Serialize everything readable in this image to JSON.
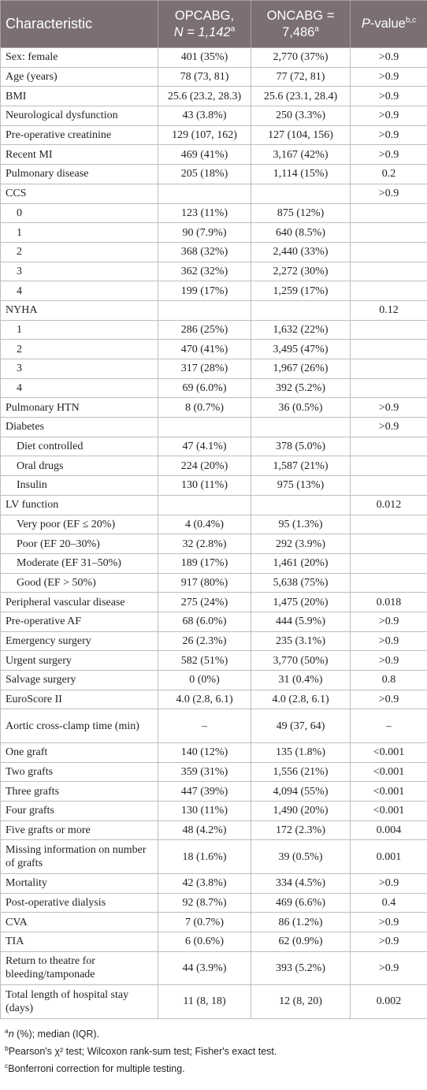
{
  "headers": {
    "characteristic": "Characteristic",
    "opcabg_line1": "OPCABG,",
    "opcabg_line2": "N = 1,142",
    "opcabg_sup": "a",
    "oncabg_line1": "ONCABG =",
    "oncabg_line2": "7,486",
    "oncabg_sup": "a",
    "p_label": "P",
    "p_rest": "-value",
    "p_sup": "b,c"
  },
  "rows": [
    {
      "label": "Sex: female",
      "op": "401 (35%)",
      "on": "2,770 (37%)",
      "p": ">0.9"
    },
    {
      "label": "Age (years)",
      "op": "78 (73, 81)",
      "on": "77 (72, 81)",
      "p": ">0.9"
    },
    {
      "label": "BMI",
      "op": "25.6 (23.2, 28.3)",
      "on": "25.6 (23.1, 28.4)",
      "p": ">0.9"
    },
    {
      "label": "Neurological dysfunction",
      "op": "43 (3.8%)",
      "on": "250 (3.3%)",
      "p": ">0.9"
    },
    {
      "label": "Pre-operative creatinine",
      "op": "129 (107, 162)",
      "on": "127 (104, 156)",
      "p": ">0.9"
    },
    {
      "label": "Recent MI",
      "op": "469 (41%)",
      "on": "3,167 (42%)",
      "p": ">0.9"
    },
    {
      "label": "Pulmonary disease",
      "op": "205 (18%)",
      "on": "1,114 (15%)",
      "p": "0.2"
    },
    {
      "label": "CCS",
      "op": "",
      "on": "",
      "p": ">0.9"
    },
    {
      "label": "0",
      "op": "123 (11%)",
      "on": "875 (12%)",
      "p": "",
      "sub": true
    },
    {
      "label": "1",
      "op": "90 (7.9%)",
      "on": "640 (8.5%)",
      "p": "",
      "sub": true
    },
    {
      "label": "2",
      "op": "368 (32%)",
      "on": "2,440 (33%)",
      "p": "",
      "sub": true
    },
    {
      "label": "3",
      "op": "362 (32%)",
      "on": "2,272 (30%)",
      "p": "",
      "sub": true
    },
    {
      "label": "4",
      "op": "199 (17%)",
      "on": "1,259 (17%)",
      "p": "",
      "sub": true
    },
    {
      "label": "NYHA",
      "op": "",
      "on": "",
      "p": "0.12"
    },
    {
      "label": "1",
      "op": "286 (25%)",
      "on": "1,632 (22%)",
      "p": "",
      "sub": true
    },
    {
      "label": "2",
      "op": "470 (41%)",
      "on": "3,495 (47%)",
      "p": "",
      "sub": true
    },
    {
      "label": "3",
      "op": "317 (28%)",
      "on": "1,967 (26%)",
      "p": "",
      "sub": true
    },
    {
      "label": "4",
      "op": "69 (6.0%)",
      "on": "392 (5.2%)",
      "p": "",
      "sub": true
    },
    {
      "label": "Pulmonary HTN",
      "op": "8 (0.7%)",
      "on": "36 (0.5%)",
      "p": ">0.9"
    },
    {
      "label": "Diabetes",
      "op": "",
      "on": "",
      "p": ">0.9"
    },
    {
      "label": "Diet controlled",
      "op": "47 (4.1%)",
      "on": "378 (5.0%)",
      "p": "",
      "sub": true
    },
    {
      "label": "Oral drugs",
      "op": "224 (20%)",
      "on": "1,587 (21%)",
      "p": "",
      "sub": true
    },
    {
      "label": "Insulin",
      "op": "130 (11%)",
      "on": "975 (13%)",
      "p": "",
      "sub": true
    },
    {
      "label": "LV function",
      "op": "",
      "on": "",
      "p": "0.012"
    },
    {
      "label": "Very poor (EF ≤ 20%)",
      "op": "4 (0.4%)",
      "on": "95 (1.3%)",
      "p": "",
      "sub": true
    },
    {
      "label": "Poor (EF 20–30%)",
      "op": "32 (2.8%)",
      "on": "292 (3.9%)",
      "p": "",
      "sub": true
    },
    {
      "label": "Moderate (EF 31–50%)",
      "op": "189 (17%)",
      "on": "1,461 (20%)",
      "p": "",
      "sub": true
    },
    {
      "label": "Good (EF > 50%)",
      "op": "917 (80%)",
      "on": "5,638 (75%)",
      "p": "",
      "sub": true
    },
    {
      "label": "Peripheral vascular disease",
      "op": "275 (24%)",
      "on": "1,475 (20%)",
      "p": "0.018"
    },
    {
      "label": "Pre-operative AF",
      "op": "68 (6.0%)",
      "on": "444 (5.9%)",
      "p": ">0.9"
    },
    {
      "label": "Emergency surgery",
      "op": "26 (2.3%)",
      "on": "235 (3.1%)",
      "p": ">0.9"
    },
    {
      "label": "Urgent surgery",
      "op": "582 (51%)",
      "on": "3,770 (50%)",
      "p": ">0.9"
    },
    {
      "label": "Salvage surgery",
      "op": "0 (0%)",
      "on": "31 (0.4%)",
      "p": "0.8"
    },
    {
      "label": "EuroScore II",
      "op": "4.0 (2.8, 6.1)",
      "on": "4.0 (2.8, 6.1)",
      "p": ">0.9"
    },
    {
      "label": "Aortic cross-clamp time (min)",
      "op": "–",
      "on": "49 (37, 64)",
      "p": "–",
      "tall": true
    },
    {
      "label": "One graft",
      "op": "140 (12%)",
      "on": "135 (1.8%)",
      "p": "<0.001"
    },
    {
      "label": "Two grafts",
      "op": "359 (31%)",
      "on": "1,556 (21%)",
      "p": "<0.001"
    },
    {
      "label": "Three grafts",
      "op": "447 (39%)",
      "on": "4,094 (55%)",
      "p": "<0.001"
    },
    {
      "label": "Four grafts",
      "op": "130 (11%)",
      "on": "1,490 (20%)",
      "p": "<0.001"
    },
    {
      "label": "Five grafts or more",
      "op": "48 (4.2%)",
      "on": "172 (2.3%)",
      "p": "0.004"
    },
    {
      "label": "Missing information on number of grafts",
      "op": "18 (1.6%)",
      "on": "39 (0.5%)",
      "p": "0.001",
      "tall": true
    },
    {
      "label": "Mortality",
      "op": "42 (3.8%)",
      "on": "334 (4.5%)",
      "p": ">0.9"
    },
    {
      "label": "Post-operative dialysis",
      "op": "92 (8.7%)",
      "on": "469 (6.6%)",
      "p": "0.4"
    },
    {
      "label": "CVA",
      "op": "7 (0.7%)",
      "on": "86 (1.2%)",
      "p": ">0.9"
    },
    {
      "label": "TIA",
      "op": "6 (0.6%)",
      "on": "62 (0.9%)",
      "p": ">0.9"
    },
    {
      "label": "Return to theatre for bleeding/tamponade",
      "op": "44 (3.9%)",
      "on": "393 (5.2%)",
      "p": ">0.9",
      "tall": true
    },
    {
      "label": "Total length of hospital stay (days)",
      "op": "11 (8, 18)",
      "on": "12 (8, 20)",
      "p": "0.002",
      "tall": true
    }
  ],
  "footnotes": [
    {
      "sup": "a",
      "text": " (%); median (IQR).",
      "italic_prefix": "n"
    },
    {
      "sup": "b",
      "text": "Pearson's χ² test; Wilcoxon rank-sum test; Fisher's exact test.",
      "italic_prefix": ""
    },
    {
      "sup": "c",
      "text": "Bonferroni correction for multiple testing.",
      "italic_prefix": ""
    }
  ]
}
